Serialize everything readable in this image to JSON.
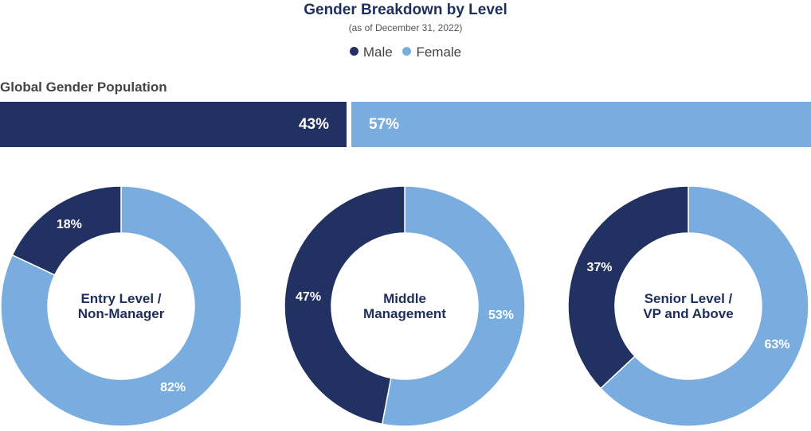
{
  "chart_data": {
    "title": "Gender Breakdown by Level",
    "subtitle": "(as of December 31, 2022)",
    "legend": [
      {
        "name": "Male",
        "color": "#213162"
      },
      {
        "name": "Female",
        "color": "#7aaddf"
      }
    ],
    "global": {
      "label": "Global Gender Population",
      "type": "bar",
      "male": 43,
      "female": 57,
      "male_label": "43%",
      "female_label": "57%"
    },
    "donuts": [
      {
        "type": "pie",
        "label_lines": [
          "Entry Level /",
          "Non-Manager"
        ],
        "male": 18,
        "female": 82,
        "male_label": "18%",
        "female_label": "82%"
      },
      {
        "type": "pie",
        "label_lines": [
          "Middle",
          "Management"
        ],
        "male": 47,
        "female": 53,
        "male_label": "47%",
        "female_label": "53%"
      },
      {
        "type": "pie",
        "label_lines": [
          "Senior Level /",
          "VP and Above"
        ],
        "male": 37,
        "female": 63,
        "male_label": "37%",
        "female_label": "63%"
      }
    ]
  }
}
